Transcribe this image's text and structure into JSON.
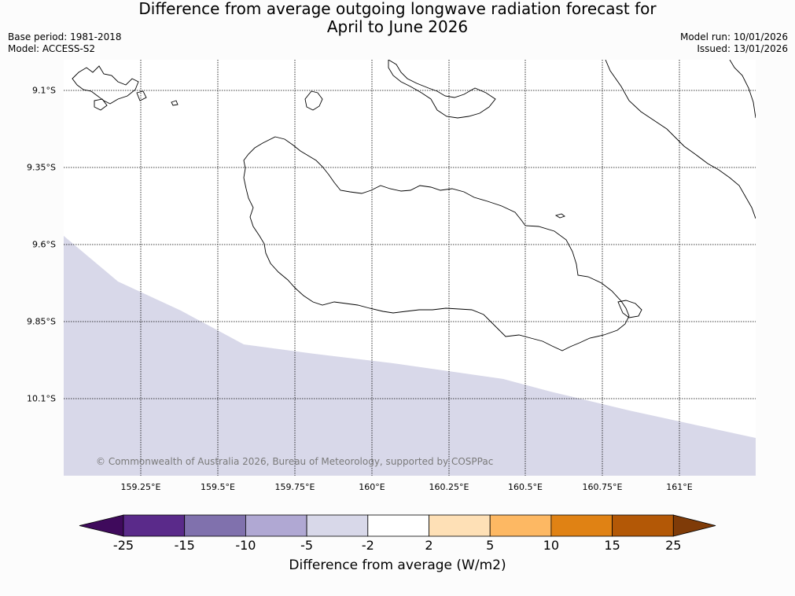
{
  "title_line1": "Difference from average outgoing longwave radiation forecast for",
  "title_line2": "April to June 2026",
  "base_period": "Base period: 1981-2018",
  "model": "Model: ACCESS-S2",
  "model_run": "Model run: 10/01/2026",
  "issued": "Issued: 13/01/2026",
  "copyright": "© Commonwealth of Australia 2026, Bureau of Meteorology, supported by COSPPac",
  "map": {
    "lat_labels": [
      "9.1°S",
      "9.35°S",
      "9.6°S",
      "9.85°S",
      "10.1°S"
    ],
    "lon_labels": [
      "159.25°E",
      "159.5°E",
      "159.75°E",
      "160°E",
      "160.25°E",
      "160.5°E",
      "160.75°E",
      "161°E"
    ],
    "shaded_category": "-5 to -2",
    "shaded_color": "#d8d8e9"
  },
  "colorbar": {
    "title": "Difference from average (W/m2)",
    "labels": [
      "-25",
      "-15",
      "-10",
      "-5",
      "-2",
      "2",
      "5",
      "10",
      "15",
      "25"
    ],
    "colors": [
      "#3f0a5c",
      "#5a2a8a",
      "#8071ad",
      "#b0a8d3",
      "#d8d8e9",
      "#ffffff",
      "#fee0b6",
      "#fdb863",
      "#e08214",
      "#b35806",
      "#7f3b08"
    ]
  }
}
